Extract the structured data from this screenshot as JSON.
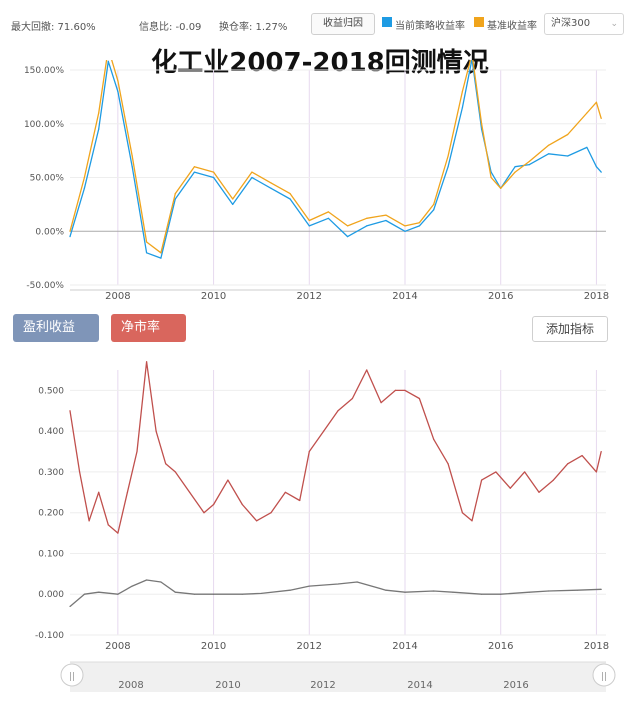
{
  "header": {
    "stats": [
      {
        "label": "最大回撤: 71.60%"
      },
      {
        "label": "信息比: -0.09"
      },
      {
        "label": "换仓率: 1.27%"
      }
    ],
    "returns_button": "收益归因",
    "legend": [
      {
        "label": "当前策略收益率",
        "color": "#1e9be3"
      },
      {
        "label": "基准收益率",
        "color": "#f0a41c"
      }
    ],
    "benchmark_select": "沪深300"
  },
  "title": "化工业2007-2018回测情况",
  "indicators": {
    "chips": [
      {
        "label": "盈利收益",
        "color": "#7f95b8"
      },
      {
        "label": "净市率",
        "color": "#d9665d"
      }
    ],
    "add_button": "添加指标"
  },
  "slider": {
    "year_labels": [
      "2008",
      "2010",
      "2012",
      "2014",
      "2016"
    ],
    "left_handle": "||",
    "right_handle": "||"
  },
  "chart_data": [
    {
      "type": "line",
      "x_labels": [
        "2008",
        "2010",
        "2012",
        "2014",
        "2016",
        "2018"
      ],
      "y_tick_labels": [
        "150.00%",
        "100.00%",
        "50.00%",
        "0.00%",
        "-50.00%"
      ],
      "ylim": [
        -50,
        150
      ],
      "xlim": [
        2007.0,
        2018.2
      ],
      "series": [
        {
          "name": "当前策略收益率",
          "color": "#1e9be3",
          "x": [
            2007.0,
            2007.3,
            2007.6,
            2007.8,
            2008.0,
            2008.3,
            2008.6,
            2008.9,
            2009.2,
            2009.6,
            2010.0,
            2010.4,
            2010.8,
            2011.2,
            2011.6,
            2012.0,
            2012.4,
            2012.8,
            2013.2,
            2013.6,
            2014.0,
            2014.3,
            2014.6,
            2014.9,
            2015.2,
            2015.4,
            2015.6,
            2015.8,
            2016.0,
            2016.3,
            2016.6,
            2017.0,
            2017.4,
            2017.8,
            2018.0,
            2018.1
          ],
          "y": [
            -5,
            40,
            95,
            158,
            130,
            60,
            -20,
            -25,
            30,
            55,
            50,
            25,
            50,
            40,
            30,
            5,
            12,
            -5,
            5,
            10,
            0,
            5,
            20,
            60,
            115,
            160,
            95,
            55,
            40,
            60,
            62,
            72,
            70,
            78,
            60,
            55
          ]
        },
        {
          "name": "基准收益率",
          "color": "#f0a41c",
          "x": [
            2007.0,
            2007.3,
            2007.6,
            2007.8,
            2008.0,
            2008.3,
            2008.6,
            2008.9,
            2009.2,
            2009.6,
            2010.0,
            2010.4,
            2010.8,
            2011.2,
            2011.6,
            2012.0,
            2012.4,
            2012.8,
            2013.2,
            2013.6,
            2014.0,
            2014.3,
            2014.6,
            2014.9,
            2015.2,
            2015.4,
            2015.6,
            2015.8,
            2016.0,
            2016.3,
            2016.6,
            2017.0,
            2017.4,
            2017.8,
            2018.0,
            2018.1
          ],
          "y": [
            0,
            50,
            110,
            170,
            140,
            70,
            -10,
            -20,
            35,
            60,
            55,
            30,
            55,
            45,
            35,
            10,
            18,
            5,
            12,
            15,
            5,
            8,
            25,
            70,
            130,
            165,
            100,
            50,
            40,
            55,
            65,
            80,
            90,
            110,
            120,
            105
          ]
        }
      ]
    },
    {
      "type": "line",
      "x_labels": [
        "2008",
        "2010",
        "2012",
        "2014",
        "2016",
        "2018"
      ],
      "y_tick_labels": [
        "0.500",
        "0.400",
        "0.300",
        "0.200",
        "0.100",
        "0.000",
        "-0.100"
      ],
      "ylim": [
        -0.1,
        0.55
      ],
      "xlim": [
        2007.0,
        2018.2
      ],
      "series": [
        {
          "name": "盈利收益",
          "color": "#777777",
          "x": [
            2007.0,
            2007.3,
            2007.6,
            2008.0,
            2008.3,
            2008.6,
            2008.9,
            2009.2,
            2009.6,
            2010.0,
            2010.6,
            2011.0,
            2011.6,
            2012.0,
            2012.6,
            2013.0,
            2013.6,
            2014.0,
            2014.6,
            2015.0,
            2015.6,
            2016.0,
            2016.6,
            2017.0,
            2017.6,
            2018.1
          ],
          "y": [
            -0.03,
            0.0,
            0.005,
            0.0,
            0.02,
            0.035,
            0.03,
            0.005,
            0.0,
            0.0,
            0.0,
            0.002,
            0.01,
            0.02,
            0.025,
            0.03,
            0.01,
            0.005,
            0.008,
            0.005,
            0.0,
            0.0,
            0.005,
            0.008,
            0.01,
            0.012
          ]
        },
        {
          "name": "净市率",
          "color": "#c0504d",
          "x": [
            2007.0,
            2007.2,
            2007.4,
            2007.6,
            2007.8,
            2008.0,
            2008.2,
            2008.4,
            2008.6,
            2008.8,
            2009.0,
            2009.2,
            2009.5,
            2009.8,
            2010.0,
            2010.3,
            2010.6,
            2010.9,
            2011.2,
            2011.5,
            2011.8,
            2012.0,
            2012.3,
            2012.6,
            2012.9,
            2013.2,
            2013.5,
            2013.8,
            2014.0,
            2014.3,
            2014.6,
            2014.9,
            2015.2,
            2015.4,
            2015.6,
            2015.9,
            2016.2,
            2016.5,
            2016.8,
            2017.1,
            2017.4,
            2017.7,
            2018.0,
            2018.1
          ],
          "y": [
            0.45,
            0.3,
            0.18,
            0.25,
            0.17,
            0.15,
            0.25,
            0.35,
            0.57,
            0.4,
            0.32,
            0.3,
            0.25,
            0.2,
            0.22,
            0.28,
            0.22,
            0.18,
            0.2,
            0.25,
            0.23,
            0.35,
            0.4,
            0.45,
            0.48,
            0.55,
            0.47,
            0.5,
            0.5,
            0.48,
            0.38,
            0.32,
            0.2,
            0.18,
            0.28,
            0.3,
            0.26,
            0.3,
            0.25,
            0.28,
            0.32,
            0.34,
            0.3,
            0.35
          ]
        }
      ]
    }
  ]
}
